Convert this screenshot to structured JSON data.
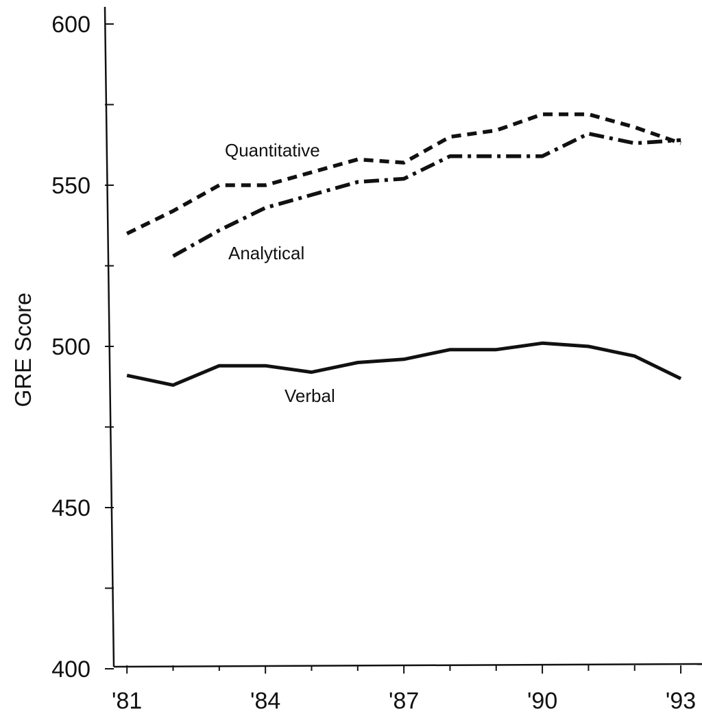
{
  "chart_data": {
    "type": "line",
    "title": "",
    "xlabel": "",
    "ylabel": "GRE Score",
    "x": [
      1981,
      1982,
      1983,
      1984,
      1985,
      1986,
      1987,
      1988,
      1989,
      1990,
      1991,
      1992,
      1993
    ],
    "xlim": [
      1980.7,
      1993.4
    ],
    "ylim": [
      400,
      600
    ],
    "y_ticks": [
      "600",
      "550",
      "500",
      "450",
      "400"
    ],
    "x_tick_labels": [
      "'81",
      "'84",
      "'87",
      "'90",
      "'93"
    ],
    "grid": false,
    "series": [
      {
        "name": "Quantitative",
        "style": "dashed",
        "values": [
          535,
          542,
          550,
          550,
          554,
          558,
          557,
          565,
          567,
          572,
          572,
          568,
          563
        ]
      },
      {
        "name": "Analytical",
        "style": "dash-dot",
        "x": [
          1982,
          1983,
          1984,
          1985,
          1986,
          1987,
          1988,
          1989,
          1990,
          1991,
          1992,
          1993
        ],
        "values": [
          528,
          536,
          543,
          547,
          551,
          552,
          559,
          559,
          559,
          566,
          563,
          564
        ]
      },
      {
        "name": "Verbal",
        "style": "solid",
        "values": [
          491,
          488,
          494,
          494,
          492,
          495,
          496,
          499,
          499,
          501,
          500,
          497,
          490
        ]
      }
    ],
    "line_color": "#111111"
  }
}
